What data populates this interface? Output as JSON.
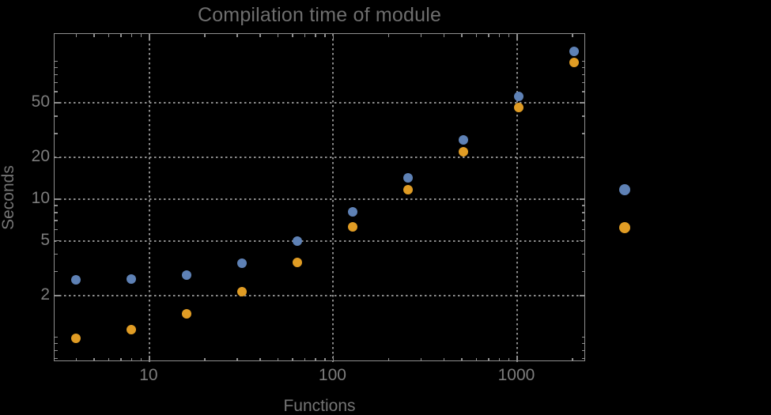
{
  "chart_data": {
    "type": "scatter",
    "title": "Compilation time of module",
    "xlabel": "Functions",
    "ylabel": "Seconds",
    "x_scale": "log",
    "y_scale": "log",
    "x_range": [
      3.05,
      2367
    ],
    "y_range": [
      0.66,
      157.7
    ],
    "x_major_ticks": [
      10,
      100,
      1000
    ],
    "x_major_tick_labels": [
      "10",
      "100",
      "1000"
    ],
    "x_minor_ticks": [
      4,
      5,
      6,
      7,
      8,
      9,
      20,
      30,
      40,
      50,
      60,
      70,
      80,
      90,
      200,
      300,
      400,
      500,
      600,
      700,
      800,
      900,
      2000
    ],
    "y_major_ticks": [
      2,
      5,
      10,
      20,
      50
    ],
    "y_major_tick_labels": [
      "2",
      "5",
      "10",
      "20",
      "50"
    ],
    "y_minor_ticks": [
      0.7,
      0.8,
      0.9,
      1,
      3,
      4,
      6,
      7,
      8,
      9,
      30,
      40,
      60,
      70,
      80,
      90,
      100
    ],
    "grid": {
      "lines_at_major_ticks": true,
      "style": "dotted"
    },
    "x": [
      4,
      8,
      16,
      32,
      64,
      128,
      256,
      512,
      1024,
      2048
    ],
    "series": [
      {
        "name": "",
        "color": "#5e81b5",
        "values": [
          2.6,
          2.65,
          2.8,
          3.45,
          5.0,
          8.1,
          14.3,
          27,
          55.5,
          118
        ]
      },
      {
        "name": "",
        "color": "#e09c24",
        "values": [
          0.98,
          1.14,
          1.47,
          2.13,
          3.5,
          6.3,
          11.7,
          22.2,
          46,
          98
        ]
      }
    ],
    "legend": {
      "position": "right-center",
      "entries": [
        {
          "label": "",
          "marker_color": "#5e81b5"
        },
        {
          "label": "",
          "marker_color": "#e09c24"
        }
      ]
    }
  },
  "colors": {
    "background": "#000000",
    "frame": "#8f8f8f",
    "grid": "#8c8c8c",
    "tick_label": "#7d7d7d",
    "axis_label": "#757575",
    "title": "#6e6e6e"
  }
}
